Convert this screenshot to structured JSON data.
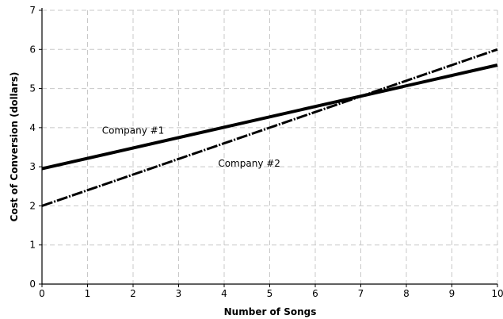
{
  "chart_data": {
    "type": "line",
    "title": "",
    "xlabel": "Number of Songs",
    "ylabel": "Cost of Conversion (dollars)",
    "xlim": [
      0,
      10
    ],
    "ylim": [
      0,
      7
    ],
    "x_ticks": [
      "0",
      "1",
      "2",
      "3",
      "4",
      "5",
      "6",
      "7",
      "8",
      "9",
      "10"
    ],
    "y_ticks": [
      "0",
      "1",
      "2",
      "3",
      "4",
      "5",
      "6",
      "7"
    ],
    "grid": true,
    "legend": "none",
    "series": [
      {
        "name": "Company #1",
        "style": "solid",
        "color": "#000000",
        "x": [
          0,
          10
        ],
        "y": [
          2.95,
          5.6
        ]
      },
      {
        "name": "Company #2",
        "style": "dash-dot",
        "color": "#000000",
        "x": [
          0,
          10
        ],
        "y": [
          2.0,
          6.0
        ]
      }
    ],
    "annotations": [
      {
        "text": "Company #1",
        "x": 2.0,
        "y": 3.85
      },
      {
        "text": "Company #2",
        "x": 4.55,
        "y": 3.0
      }
    ]
  }
}
